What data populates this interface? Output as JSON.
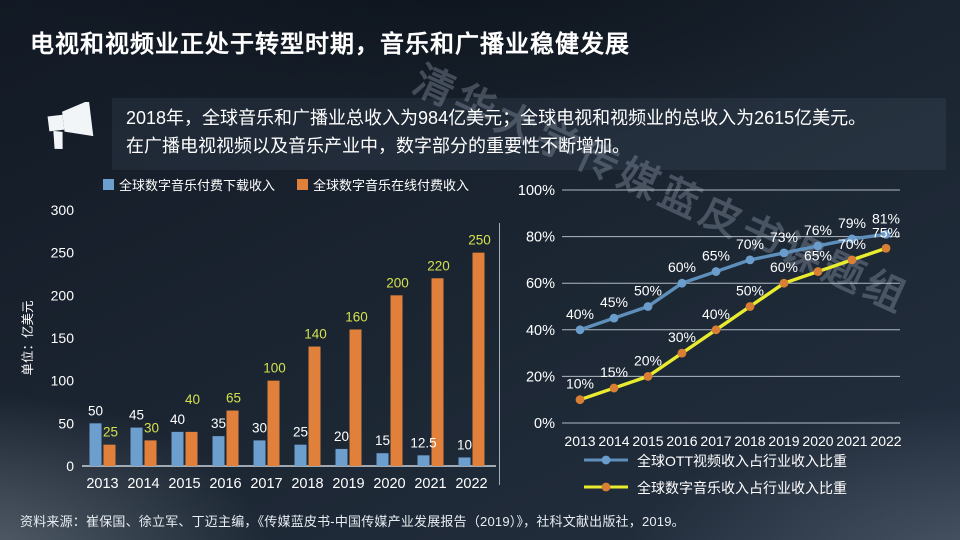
{
  "slide": {
    "title": "电视和视频业正处于转型时期，音乐和广播业稳健发展",
    "summary": {
      "line1": "2018年，全球音乐和广播业总收入为984亿美元；全球电视和视频业的总收入为2615亿美元。",
      "line2": "在广播电视视频以及音乐产业中，数字部分的重要性不断增加。"
    },
    "watermark": "清华大学传媒蓝皮书课题组",
    "source": "资料来源：崔保国、徐立军、丁迈主编，《传媒蓝皮书-中国传媒产业发展报告（2019）》，社科文献出版社，2019。"
  },
  "colors": {
    "background_top": "#121924",
    "background_bottom": "#243040",
    "text": "#ffffff",
    "grid": "#c9d3dd",
    "bar_blue": "#6d9fce",
    "bar_orange": "#e0803b",
    "bar_label_white": "#ffffff",
    "bar_label_yellow": "#d3e04e",
    "line_blue": "#5e8fba",
    "line_blue_marker": "#6b9dcc",
    "line_yellow": "#e9ec2e",
    "line_yellow_marker": "#d97e35"
  },
  "chart_data": [
    {
      "type": "bar",
      "ylabel": "单位：亿美元",
      "categories": [
        "2013",
        "2014",
        "2015",
        "2016",
        "2017",
        "2018",
        "2019",
        "2020",
        "2021",
        "2022"
      ],
      "series": [
        {
          "name": "全球数字音乐付费下载收入",
          "color": "#6d9fce",
          "label_color": "#ffffff",
          "values": [
            50,
            45,
            40,
            35,
            30,
            25,
            20,
            15,
            12.5,
            10
          ]
        },
        {
          "name": "全球数字音乐在线付费收入",
          "color": "#e0803b",
          "label_color": "#d3e04e",
          "values": [
            25,
            30,
            40,
            65,
            100,
            140,
            160,
            200,
            220,
            250
          ]
        }
      ],
      "ylim": [
        0,
        300
      ],
      "yticks": [
        0,
        50,
        100,
        150,
        200,
        250,
        300
      ],
      "grid": false,
      "legend_position": "top"
    },
    {
      "type": "line",
      "categories": [
        "2013",
        "2014",
        "2015",
        "2016",
        "2017",
        "2018",
        "2019",
        "2020",
        "2021",
        "2022"
      ],
      "series": [
        {
          "name": "全球OTT视频收入占行业收入比重",
          "color": "#5e8fba",
          "marker_color": "#6b9dcc",
          "values": [
            40,
            45,
            50,
            60,
            65,
            70,
            73,
            76,
            79,
            81
          ]
        },
        {
          "name": "全球数字音乐收入占行业收入比重",
          "color": "#e9ec2e",
          "marker_color": "#d97e35",
          "values": [
            10,
            15,
            20,
            30,
            40,
            50,
            60,
            65,
            70,
            75
          ]
        }
      ],
      "ylim": [
        0,
        100
      ],
      "yticks": [
        0,
        20,
        40,
        60,
        80,
        100
      ],
      "tick_suffix": "%",
      "label_suffix": "%",
      "grid": true,
      "legend_position": "bottom"
    }
  ]
}
